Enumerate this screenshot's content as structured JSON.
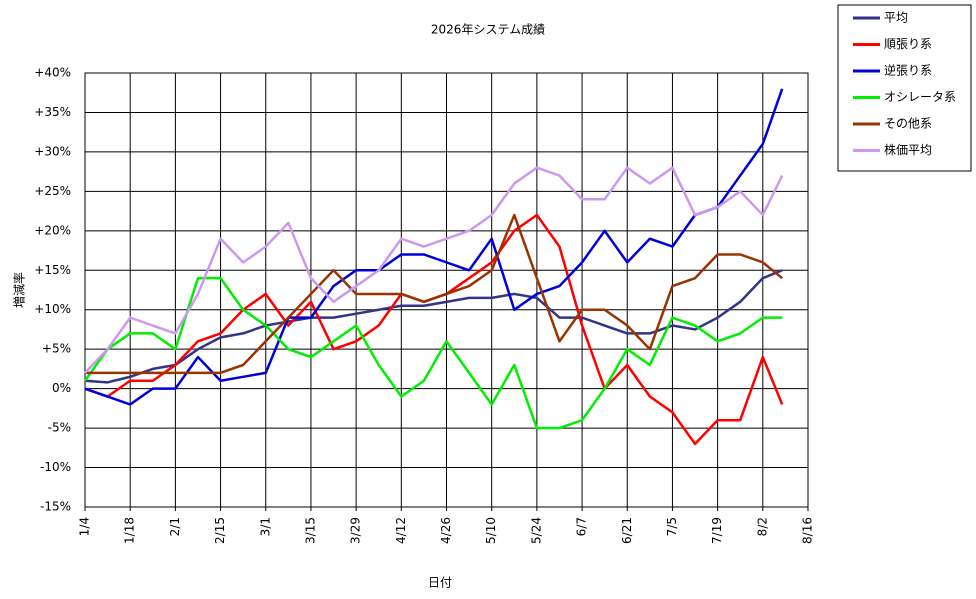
{
  "chart_data": {
    "type": "line",
    "title": "2026年システム成績",
    "x_label": "日付",
    "y_label": "増減率",
    "x": [
      "1/4",
      "1/11",
      "1/18",
      "1/25",
      "2/1",
      "2/8",
      "2/15",
      "2/22",
      "3/1",
      "3/8",
      "3/15",
      "3/22",
      "3/29",
      "4/5",
      "4/12",
      "4/19",
      "4/26",
      "5/3",
      "5/10",
      "5/17",
      "5/24",
      "5/31",
      "6/7",
      "6/14",
      "6/21",
      "6/28",
      "7/5",
      "7/12",
      "7/19",
      "7/26",
      "8/2",
      "8/8"
    ],
    "xlim": [
      "1/4",
      "8/16"
    ],
    "xticks": [
      "1/4",
      "1/18",
      "2/1",
      "2/15",
      "3/1",
      "3/15",
      "3/29",
      "4/12",
      "4/26",
      "5/10",
      "5/24",
      "6/7",
      "6/21",
      "7/5",
      "7/19",
      "8/2",
      "8/16"
    ],
    "ylim": [
      -15,
      40
    ],
    "yticks": [
      {
        "value": -15,
        "label": "-15%"
      },
      {
        "value": -10,
        "label": "-10%"
      },
      {
        "value": -5,
        "label": "-5%"
      },
      {
        "value": 0,
        "label": "0%"
      },
      {
        "value": 5,
        "label": "+5%"
      },
      {
        "value": 10,
        "label": "+10%"
      },
      {
        "value": 15,
        "label": "+15%"
      },
      {
        "value": 20,
        "label": "+20%"
      },
      {
        "value": 25,
        "label": "+25%"
      },
      {
        "value": 30,
        "label": "+30%"
      },
      {
        "value": 35,
        "label": "+35%"
      },
      {
        "value": 40,
        "label": "+40%"
      }
    ],
    "grid": true,
    "legend": "outside-top-right",
    "series": [
      {
        "name": "平均",
        "color": "#333388",
        "values": [
          1,
          0.8,
          1.5,
          2.5,
          3,
          5,
          6.5,
          7,
          8,
          8.5,
          9,
          9,
          9.5,
          10,
          10.5,
          10.5,
          11,
          11.5,
          11.5,
          12,
          11.5,
          9,
          9,
          8,
          7,
          7,
          8,
          7.5,
          9,
          11,
          14,
          15
        ]
      },
      {
        "name": "順張り系",
        "color": "#ff0000",
        "values": [
          0,
          -1,
          1,
          1,
          3,
          6,
          7,
          10,
          12,
          8,
          11,
          5,
          6,
          8,
          12,
          11,
          12,
          14,
          16,
          20,
          22,
          18,
          8,
          0,
          3,
          -1,
          -3,
          -7,
          -4,
          -4,
          4,
          -2
        ]
      },
      {
        "name": "逆張り系",
        "color": "#0000dd",
        "values": [
          0,
          -1,
          -2,
          0,
          0,
          4,
          1,
          1.5,
          2,
          9,
          9,
          13,
          15,
          15,
          17,
          17,
          16,
          15,
          19,
          10,
          12,
          13,
          16,
          20,
          16,
          19,
          18,
          22,
          23,
          27,
          31,
          38
        ]
      },
      {
        "name": "オシレータ系",
        "color": "#00ee00",
        "values": [
          1,
          5,
          7,
          7,
          5,
          14,
          14,
          10,
          8,
          5,
          4,
          6,
          8,
          3,
          -1,
          1,
          6,
          2,
          -2,
          3,
          -5,
          -5,
          -4,
          0,
          5,
          3,
          9,
          8,
          6,
          7,
          9,
          9
        ]
      },
      {
        "name": "その他系",
        "color": "#993300",
        "values": [
          2,
          2,
          2,
          2,
          2,
          2,
          2,
          3,
          6,
          9,
          12,
          15,
          12,
          12,
          12,
          11,
          12,
          13,
          15,
          22,
          14,
          6,
          10,
          10,
          8,
          5,
          13,
          14,
          17,
          17,
          16,
          14
        ]
      },
      {
        "name": "株価平均",
        "color": "#cc99ee",
        "values": [
          2,
          5,
          9,
          8,
          7,
          12,
          19,
          16,
          18,
          21,
          14,
          11,
          13,
          15,
          19,
          18,
          19,
          20,
          22,
          26,
          28,
          27,
          24,
          24,
          28,
          26,
          28,
          22,
          23,
          25,
          22,
          27
        ]
      }
    ]
  }
}
